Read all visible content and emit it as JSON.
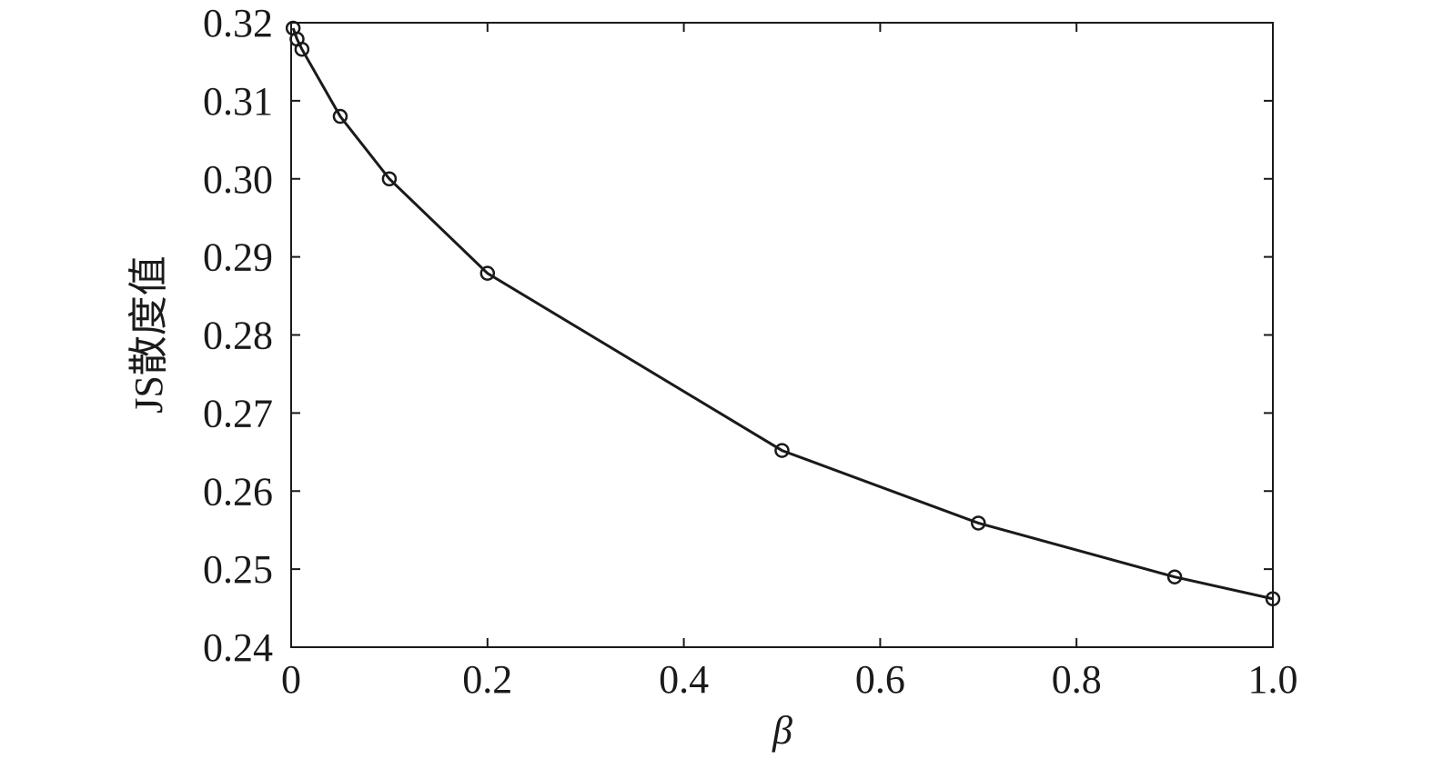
{
  "chart_data": {
    "type": "line",
    "x_label": "β",
    "y_label": "JS散度值",
    "x": [
      0.002,
      0.006,
      0.011,
      0.05,
      0.1,
      0.2,
      0.5,
      0.7,
      0.9,
      1.0
    ],
    "values": [
      0.3193,
      0.3179,
      0.3166,
      0.308,
      0.3,
      0.2879,
      0.2652,
      0.2559,
      0.249,
      0.2462
    ],
    "color": "#1a1a1a",
    "marker": "circle",
    "xlim": [
      0,
      1
    ],
    "xticks": [
      0,
      0.2,
      0.4,
      0.6,
      0.8,
      {
        "value": 1,
        "label": "1.0"
      }
    ],
    "ylim": [
      0.24,
      0.32
    ],
    "yticks": [
      0.24,
      0.25,
      0.26,
      0.27,
      0.28,
      0.29,
      {
        "value": 0.3,
        "label": "0.30"
      },
      0.31,
      0.32
    ],
    "grid": false
  }
}
